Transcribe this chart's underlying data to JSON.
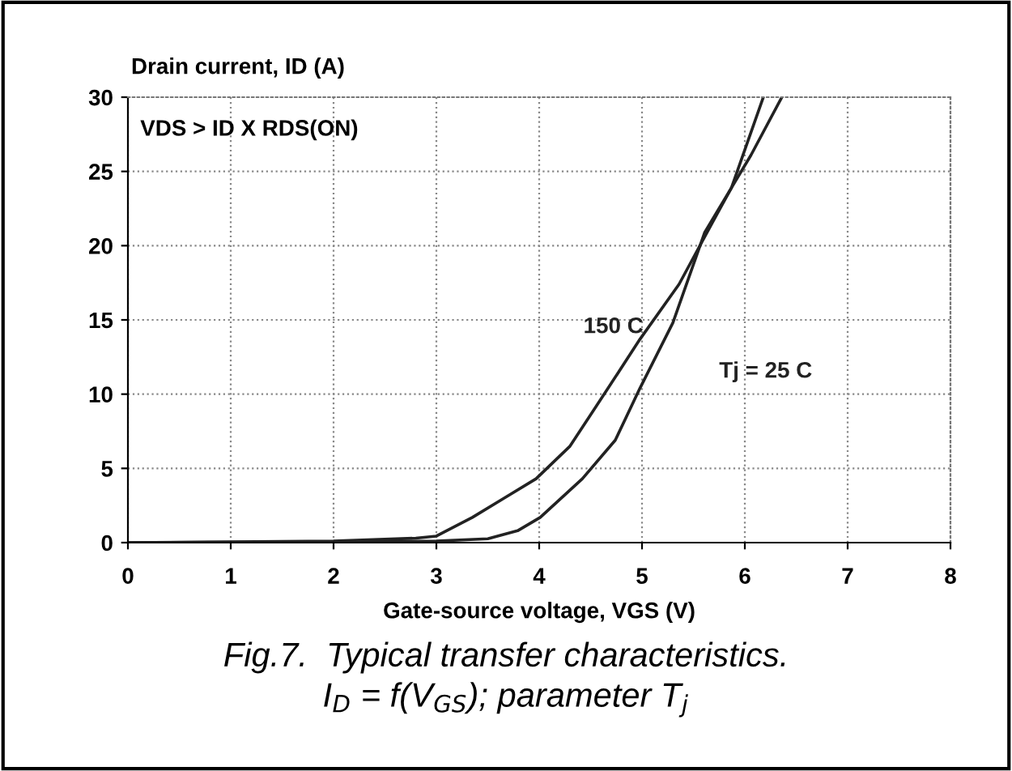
{
  "chart_data": {
    "type": "line",
    "xlabel": "Gate-source voltage, VGS (V)",
    "ylabel": "Drain current, ID (A)",
    "xlim": [
      0,
      8
    ],
    "ylim": [
      0,
      30
    ],
    "xticks": [
      0,
      1,
      2,
      3,
      4,
      5,
      6,
      7,
      8
    ],
    "yticks": [
      0,
      5,
      10,
      15,
      20,
      25,
      30
    ],
    "grid": true,
    "line_style": "solid",
    "marker": "none",
    "series": [
      {
        "name": "150 C",
        "color": "#222222",
        "x": [
          0,
          1,
          2,
          2.8,
          3.0,
          3.35,
          3.66,
          3.97,
          4.3,
          4.67,
          4.98,
          5.36,
          5.68,
          5.87,
          6.18
        ],
        "values": [
          0,
          0.05,
          0.1,
          0.3,
          0.44,
          1.7,
          3,
          4.3,
          6.5,
          10.4,
          13.7,
          17.4,
          21.5,
          23.9,
          30
        ]
      },
      {
        "name": "Tj = 25 C",
        "color": "#222222",
        "x": [
          0,
          1,
          2,
          3.0,
          3.5,
          3.79,
          4.01,
          4.42,
          4.74,
          4.98,
          5.3,
          5.61,
          5.87,
          6.06,
          6.36
        ],
        "values": [
          0,
          0.03,
          0.05,
          0.1,
          0.26,
          0.8,
          1.7,
          4.3,
          6.9,
          10.4,
          14.8,
          20.9,
          23.9,
          26.1,
          30
        ]
      }
    ],
    "annotations": [
      "VDS > ID X RDS(ON)",
      "Fig.7.  Typical transfer characteristics.",
      "I$_{D}$ = f(V$_{GS}$); parameter T$_{j}$"
    ]
  }
}
